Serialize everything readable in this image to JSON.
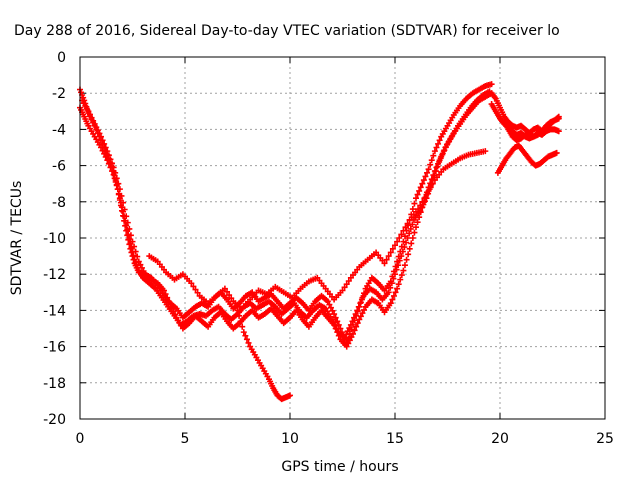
{
  "chart_data": {
    "type": "scatter",
    "title": "Day 288 of 2016, Sidereal Day-to-day VTEC variation (SDTVAR) for receiver lo",
    "xlabel": "GPS time / hours",
    "ylabel": "SDTVAR / TECUs",
    "xlim": [
      0,
      25
    ],
    "ylim": [
      -20,
      0
    ],
    "xticks": [
      "0",
      "5",
      "10",
      "15",
      "20",
      "25"
    ],
    "yticks": [
      "0",
      "-2",
      "-4",
      "-6",
      "-8",
      "-10",
      "-12",
      "-14",
      "-16",
      "-18",
      "-20"
    ],
    "grid": true,
    "marker": "+",
    "color": "#ff0000",
    "series": [
      {
        "x": [
          0,
          0.2,
          0.4,
          0.7,
          1.0,
          1.3,
          1.6,
          1.8,
          2.0,
          2.2,
          2.4,
          2.6,
          2.8,
          3.0,
          3.3,
          3.6,
          3.9,
          4.2,
          4.5,
          4.8,
          5.1,
          5.4,
          5.7,
          6.0,
          6.3,
          6.6,
          6.9,
          7.2,
          7.5,
          7.8,
          8.1,
          8.4,
          8.7,
          9.0,
          9.3,
          9.6,
          9.9,
          10.2,
          10.5,
          10.8,
          11.1,
          11.4,
          11.7,
          12.0,
          12.3,
          12.6,
          12.9,
          13.2,
          13.5,
          13.8,
          14.1,
          14.4,
          14.7,
          15.0,
          15.3,
          15.6,
          15.9,
          16.2,
          16.5,
          16.8,
          17.1,
          17.4,
          17.7,
          18.0,
          18.3,
          18.6,
          18.9,
          19.2,
          19.5
        ],
        "y": [
          -2.8,
          -3.3,
          -3.8,
          -4.4,
          -5.0,
          -5.7,
          -6.5,
          -7.3,
          -8.3,
          -9.3,
          -10.3,
          -11.2,
          -11.8,
          -12.2,
          -12.5,
          -12.8,
          -13.3,
          -13.8,
          -14.3,
          -14.8,
          -14.6,
          -14.3,
          -14.2,
          -14.3,
          -14.0,
          -13.8,
          -14.2,
          -14.5,
          -14.2,
          -13.8,
          -13.6,
          -13.9,
          -13.7,
          -13.5,
          -13.8,
          -14.2,
          -13.9,
          -13.6,
          -14.1,
          -14.4,
          -14.0,
          -13.7,
          -13.9,
          -14.5,
          -15.2,
          -15.5,
          -14.8,
          -14.0,
          -13.2,
          -12.8,
          -13.0,
          -13.4,
          -13.0,
          -12.0,
          -11.0,
          -10.0,
          -9.0,
          -8.5,
          -7.8,
          -6.8,
          -5.8,
          -5.0,
          -4.4,
          -3.8,
          -3.3,
          -2.8,
          -2.4,
          -2.1,
          -1.9
        ]
      },
      {
        "x": [
          0,
          0.2,
          0.4,
          0.7,
          1.0,
          1.3,
          1.6,
          1.8,
          2.0,
          2.2,
          2.4,
          2.6,
          2.8,
          3.1,
          3.4,
          3.7,
          4.0,
          4.3,
          4.6,
          4.9,
          5.2,
          5.5,
          5.8,
          6.1,
          6.4,
          6.7,
          7.0,
          7.3,
          7.6,
          7.9,
          8.2,
          8.5,
          8.8,
          9.1,
          9.4,
          9.7,
          10.0,
          10.3,
          10.6,
          10.9,
          11.2,
          11.5,
          11.8,
          12.1,
          12.4,
          12.7,
          13.0,
          13.3,
          13.6,
          13.9,
          14.2,
          14.5,
          14.8,
          15.1,
          15.4,
          15.7,
          16.0,
          16.3,
          16.6,
          16.9,
          17.2,
          17.5,
          17.8,
          18.1,
          18.4,
          18.7,
          19.0,
          19.3,
          19.6
        ],
        "y": [
          -1.8,
          -2.4,
          -3.1,
          -3.8,
          -4.6,
          -5.4,
          -6.3,
          -7.3,
          -8.5,
          -9.6,
          -10.6,
          -11.4,
          -11.9,
          -12.0,
          -12.2,
          -12.6,
          -13.2,
          -13.6,
          -13.9,
          -14.4,
          -14.1,
          -13.8,
          -13.6,
          -13.8,
          -13.3,
          -13.0,
          -13.4,
          -13.9,
          -13.6,
          -13.2,
          -13.0,
          -13.5,
          -13.3,
          -13.1,
          -13.5,
          -13.9,
          -13.6,
          -13.3,
          -13.6,
          -14.0,
          -13.5,
          -13.2,
          -13.5,
          -14.2,
          -15.0,
          -15.8,
          -14.8,
          -13.8,
          -12.8,
          -12.2,
          -12.5,
          -12.9,
          -12.4,
          -11.3,
          -10.2,
          -9.0,
          -7.8,
          -7.0,
          -6.2,
          -5.2,
          -4.4,
          -3.8,
          -3.2,
          -2.7,
          -2.3,
          -2.0,
          -1.8,
          -1.6,
          -1.5
        ]
      },
      {
        "x": [
          0.1,
          0.4,
          0.7,
          1.0,
          1.3,
          1.6,
          1.9,
          2.2,
          2.5,
          2.8,
          3.1,
          3.4,
          3.7,
          4.0,
          4.3,
          4.6,
          4.9,
          5.2,
          5.5,
          5.8,
          6.1,
          6.4,
          6.7,
          7.0,
          7.3,
          7.6,
          7.9,
          8.2,
          8.5,
          8.8,
          9.1,
          9.4,
          9.7,
          10.0,
          10.3,
          10.6,
          10.9,
          11.2,
          11.5,
          11.8,
          12.1,
          12.4,
          12.7,
          13.0,
          13.3,
          13.6,
          13.9,
          14.2,
          14.5,
          14.8,
          15.1,
          15.4,
          15.7,
          16.0,
          16.3,
          16.6,
          16.9,
          17.2,
          17.5,
          17.8,
          18.1,
          18.4,
          18.7,
          19.0,
          19.3,
          19.6
        ],
        "y": [
          -2.4,
          -3.0,
          -3.7,
          -4.4,
          -5.2,
          -6.1,
          -7.3,
          -8.8,
          -10.2,
          -11.3,
          -12.0,
          -12.3,
          -12.5,
          -12.9,
          -13.7,
          -14.4,
          -15.0,
          -14.7,
          -14.3,
          -14.6,
          -14.9,
          -14.4,
          -14.1,
          -14.6,
          -15.0,
          -14.7,
          -14.3,
          -14.0,
          -14.4,
          -14.2,
          -13.9,
          -14.3,
          -14.7,
          -14.4,
          -14.0,
          -14.5,
          -14.9,
          -14.4,
          -14.0,
          -14.4,
          -14.8,
          -15.6,
          -16.0,
          -15.3,
          -14.5,
          -13.8,
          -13.4,
          -13.6,
          -14.1,
          -13.6,
          -12.8,
          -11.8,
          -10.6,
          -9.4,
          -8.3,
          -7.2,
          -6.3,
          -5.5,
          -4.8,
          -4.2,
          -3.7,
          -3.2,
          -2.8,
          -2.4,
          -2.2,
          -2.0
        ]
      },
      {
        "x": [
          3.3,
          3.7,
          4.1,
          4.5,
          4.9,
          5.3,
          5.7,
          6.1,
          6.5,
          6.9,
          7.3,
          7.7,
          8.1,
          8.5,
          8.9,
          9.3,
          9.7,
          10.1,
          10.5,
          10.9,
          11.3,
          11.7,
          12.1,
          12.5,
          12.9,
          13.3,
          13.7,
          14.1,
          14.5,
          14.9,
          15.3,
          15.7,
          16.1,
          16.5,
          16.9,
          17.3,
          17.7,
          18.1,
          18.5,
          18.9,
          19.3
        ],
        "y": [
          -11.0,
          -11.3,
          -11.9,
          -12.3,
          -12.0,
          -12.5,
          -13.2,
          -13.6,
          -13.2,
          -12.8,
          -13.5,
          -13.9,
          -13.4,
          -12.9,
          -13.1,
          -12.7,
          -13.0,
          -13.3,
          -12.8,
          -12.4,
          -12.2,
          -12.8,
          -13.4,
          -12.9,
          -12.2,
          -11.6,
          -11.2,
          -10.8,
          -11.4,
          -10.6,
          -9.8,
          -9.0,
          -8.4,
          -7.6,
          -6.8,
          -6.2,
          -5.9,
          -5.6,
          -5.4,
          -5.3,
          -5.2
        ]
      },
      {
        "x": [
          7.5,
          7.8,
          8.1,
          8.4,
          8.7,
          9.0,
          9.2,
          9.4,
          9.6,
          9.8,
          10.0
        ],
        "y": [
          -14.0,
          -15.2,
          -16.0,
          -16.6,
          -17.2,
          -17.8,
          -18.3,
          -18.7,
          -18.9,
          -18.8,
          -18.7
        ]
      },
      {
        "x": [
          19.6,
          19.8,
          20.0,
          20.2,
          20.4,
          20.6,
          20.8,
          21.0,
          21.2,
          21.4,
          21.6,
          21.8,
          22.0,
          22.2,
          22.4,
          22.6,
          22.8
        ],
        "y": [
          -2.0,
          -2.3,
          -2.8,
          -3.3,
          -3.6,
          -3.8,
          -3.9,
          -3.8,
          -4.0,
          -4.2,
          -4.0,
          -3.9,
          -4.1,
          -3.8,
          -3.6,
          -3.5,
          -3.3
        ]
      },
      {
        "x": [
          19.6,
          19.8,
          20.0,
          20.2,
          20.4,
          20.6,
          20.8,
          21.0,
          21.2,
          21.4,
          21.6,
          21.8,
          22.0,
          22.2,
          22.4,
          22.6,
          22.8
        ],
        "y": [
          -2.6,
          -3.0,
          -3.4,
          -3.7,
          -3.9,
          -4.1,
          -4.3,
          -4.2,
          -4.4,
          -4.5,
          -4.4,
          -4.2,
          -4.3,
          -4.1,
          -4.0,
          -4.0,
          -4.1
        ]
      },
      {
        "x": [
          19.9,
          20.1,
          20.3,
          20.5,
          20.7,
          20.9,
          21.1,
          21.3,
          21.5,
          21.7,
          21.9,
          22.1,
          22.3,
          22.5,
          22.7
        ],
        "y": [
          -6.4,
          -6.0,
          -5.6,
          -5.3,
          -5.0,
          -4.9,
          -5.2,
          -5.5,
          -5.8,
          -6.0,
          -5.9,
          -5.7,
          -5.5,
          -5.4,
          -5.3
        ]
      },
      {
        "x": [
          20.2,
          20.4,
          20.6,
          20.8,
          21.0,
          21.2,
          21.4,
          21.6,
          21.8,
          22.0,
          22.2,
          22.4,
          22.6,
          22.8
        ],
        "y": [
          -3.6,
          -4.0,
          -4.4,
          -4.6,
          -4.5,
          -4.3,
          -4.2,
          -4.4,
          -4.3,
          -4.1,
          -3.9,
          -3.7,
          -3.5,
          -3.4
        ]
      }
    ]
  }
}
